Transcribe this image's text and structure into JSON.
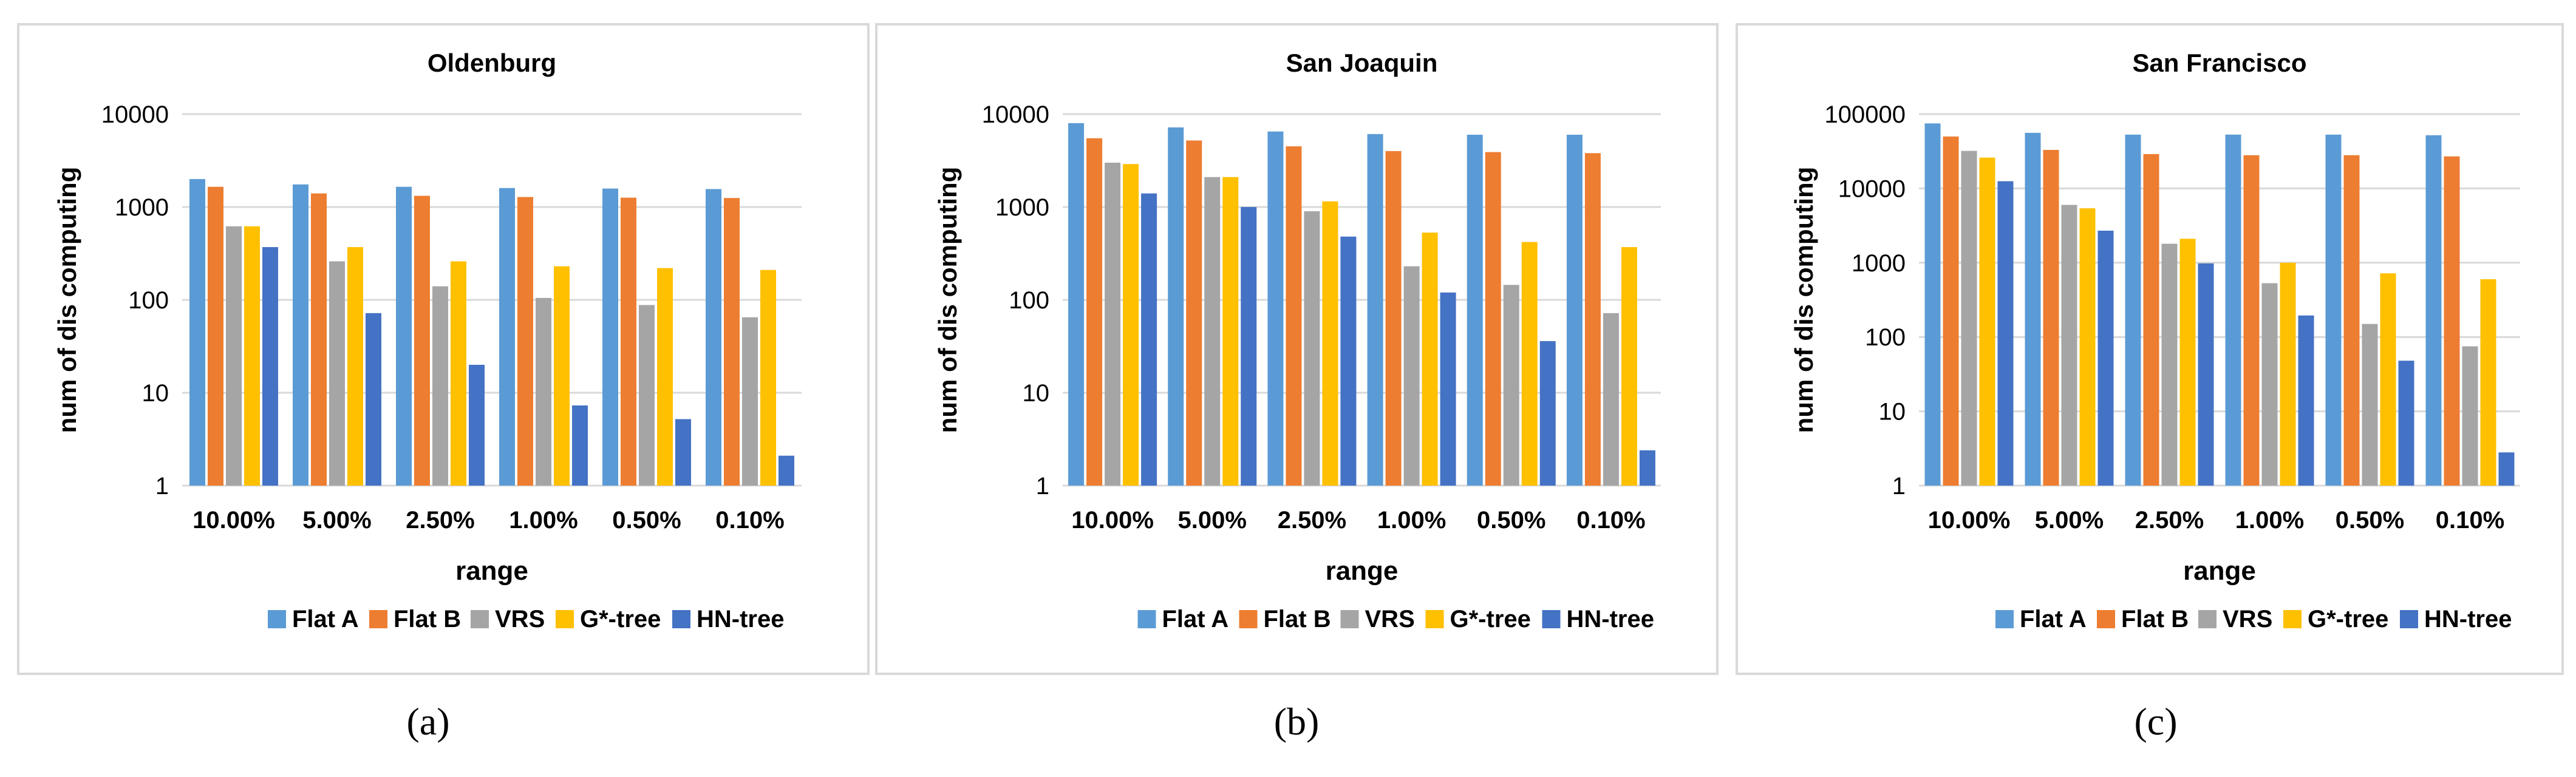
{
  "colors": {
    "flat_a": "#5B9BD5",
    "flat_b": "#ED7D31",
    "vrs": "#A5A5A5",
    "gstar": "#FFC000",
    "hn": "#4472C4",
    "panel_border": "#D9D9D9",
    "gridline": "#D9D9D9",
    "text": "#000000"
  },
  "chart_data": [
    {
      "type": "bar",
      "title": "Oldenburg",
      "caption": "(a)",
      "xlabel": "range",
      "ylabel": "num of dis computing",
      "yscale": "log",
      "ylim": [
        1,
        10000
      ],
      "yticks": [
        1,
        10,
        100,
        1000,
        10000
      ],
      "ytick_labels": [
        "1",
        "10",
        "100",
        "1000",
        "10000"
      ],
      "grid": true,
      "legend_position": "bottom",
      "categories": [
        "10.00%",
        "5.00%",
        "2.50%",
        "1.00%",
        "0.50%",
        "0.10%"
      ],
      "series": [
        {
          "name": "Flat A",
          "color_key": "flat_a",
          "values": [
            2000,
            1750,
            1650,
            1600,
            1580,
            1560
          ]
        },
        {
          "name": "Flat B",
          "color_key": "flat_b",
          "values": [
            1650,
            1400,
            1320,
            1280,
            1260,
            1250
          ]
        },
        {
          "name": "VRS",
          "color_key": "vrs",
          "values": [
            620,
            260,
            140,
            105,
            88,
            65
          ]
        },
        {
          "name": "G*-tree",
          "color_key": "gstar",
          "values": [
            620,
            370,
            260,
            230,
            220,
            210
          ]
        },
        {
          "name": "HN-tree",
          "color_key": "hn",
          "values": [
            370,
            72,
            20,
            7.3,
            5.2,
            2.1
          ]
        }
      ]
    },
    {
      "type": "bar",
      "title": "San Joaquin",
      "caption": "(b)",
      "xlabel": "range",
      "ylabel": "num of dis computing",
      "yscale": "log",
      "ylim": [
        1,
        10000
      ],
      "yticks": [
        1,
        10,
        100,
        1000,
        10000
      ],
      "ytick_labels": [
        "1",
        "10",
        "100",
        "1000",
        "10000"
      ],
      "grid": true,
      "legend_position": "bottom",
      "categories": [
        "10.00%",
        "5.00%",
        "2.50%",
        "1.00%",
        "0.50%",
        "0.10%"
      ],
      "series": [
        {
          "name": "Flat A",
          "color_key": "flat_a",
          "values": [
            8000,
            7200,
            6500,
            6100,
            6000,
            6000
          ]
        },
        {
          "name": "Flat B",
          "color_key": "flat_b",
          "values": [
            5500,
            5200,
            4500,
            4000,
            3900,
            3800
          ]
        },
        {
          "name": "VRS",
          "color_key": "vrs",
          "values": [
            3000,
            2100,
            900,
            230,
            145,
            72
          ]
        },
        {
          "name": "G*-tree",
          "color_key": "gstar",
          "values": [
            2900,
            2100,
            1150,
            530,
            420,
            370
          ]
        },
        {
          "name": "HN-tree",
          "color_key": "hn",
          "values": [
            1400,
            1000,
            480,
            120,
            36,
            2.4
          ]
        }
      ]
    },
    {
      "type": "bar",
      "title": "San Francisco",
      "caption": "(c)",
      "xlabel": "range",
      "ylabel": "num of dis computing",
      "yscale": "log",
      "ylim": [
        1,
        100000
      ],
      "yticks": [
        1,
        10,
        100,
        1000,
        10000,
        100000
      ],
      "ytick_labels": [
        "1",
        "10",
        "100",
        "1000",
        "10000",
        "100000"
      ],
      "grid": true,
      "legend_position": "bottom",
      "categories": [
        "10.00%",
        "5.00%",
        "2.50%",
        "1.00%",
        "0.50%",
        "0.10%"
      ],
      "series": [
        {
          "name": "Flat A",
          "color_key": "flat_a",
          "values": [
            75000,
            56000,
            53000,
            53000,
            53000,
            52000
          ]
        },
        {
          "name": "Flat B",
          "color_key": "flat_b",
          "values": [
            50000,
            33000,
            29000,
            28000,
            28000,
            27000
          ]
        },
        {
          "name": "VRS",
          "color_key": "vrs",
          "values": [
            32000,
            6000,
            1800,
            530,
            150,
            75
          ]
        },
        {
          "name": "G*-tree",
          "color_key": "gstar",
          "values": [
            26000,
            5400,
            2100,
            1000,
            720,
            600
          ]
        },
        {
          "name": "HN-tree",
          "color_key": "hn",
          "values": [
            12500,
            2700,
            980,
            195,
            48,
            2.8
          ]
        }
      ]
    }
  ]
}
